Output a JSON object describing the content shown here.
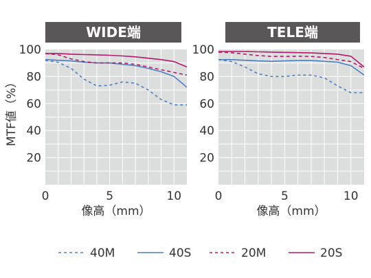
{
  "chart_data": {
    "type": "line",
    "ylabel": "MTF値（%）",
    "xlabel": "像高（mm）",
    "xlim": [
      0,
      11
    ],
    "ylim": [
      0,
      100
    ],
    "xticks": [
      "0",
      "5",
      "10"
    ],
    "yticks": [
      "20",
      "40",
      "60",
      "80",
      "100"
    ],
    "grid": true,
    "legend_position": "bottom",
    "colors": {
      "header_bg": "#595757",
      "plot_bg": "#dcdddd",
      "grid": "#ffffff",
      "blue": "#4a7ebf",
      "magenta": "#b5176b"
    },
    "legend": [
      {
        "name": "40M",
        "color": "#4a7ebf",
        "dash": "dashed"
      },
      {
        "name": "40S",
        "color": "#4a7ebf",
        "dash": "solid"
      },
      {
        "name": "20M",
        "color": "#b5176b",
        "dash": "dashed"
      },
      {
        "name": "20S",
        "color": "#b5176b",
        "dash": "solid"
      }
    ],
    "panels": [
      {
        "title": "WIDE端",
        "series": [
          {
            "name": "40M",
            "x": [
              0,
              1,
              2,
              3,
              4,
              5,
              6,
              7,
              8,
              9,
              10,
              11
            ],
            "y": [
              92,
              90.5,
              86,
              78,
              73,
              73.5,
              76,
              75,
              70,
              63,
              59,
              59
            ]
          },
          {
            "name": "40S",
            "x": [
              0,
              1,
              2,
              3,
              4,
              5,
              6,
              7,
              8,
              9,
              10,
              11
            ],
            "y": [
              92.5,
              92,
              91.5,
              90.5,
              90,
              90,
              89,
              88,
              86,
              83.5,
              80,
              72
            ]
          },
          {
            "name": "20M",
            "x": [
              0,
              1,
              2,
              3,
              4,
              5,
              6,
              7,
              8,
              9,
              10,
              11
            ],
            "y": [
              97,
              96,
              93,
              91,
              90,
              90,
              90,
              89,
              87,
              85,
              83,
              81
            ]
          },
          {
            "name": "20S",
            "x": [
              0,
              1,
              2,
              3,
              4,
              5,
              6,
              7,
              8,
              9,
              10,
              11
            ],
            "y": [
              97,
              97,
              96.5,
              96.2,
              96,
              95.7,
              95.2,
              94.5,
              93.5,
              92.5,
              91,
              87
            ]
          }
        ]
      },
      {
        "title": "TELE端",
        "series": [
          {
            "name": "40M",
            "x": [
              0,
              1,
              2,
              3,
              4,
              5,
              6,
              7,
              8,
              9,
              10,
              11
            ],
            "y": [
              92.5,
              91,
              87,
              82,
              80,
              80,
              81,
              81,
              79,
              73,
              68,
              68
            ]
          },
          {
            "name": "40S",
            "x": [
              0,
              1,
              2,
              3,
              4,
              5,
              6,
              7,
              8,
              9,
              10,
              11
            ],
            "y": [
              92.5,
              92.5,
              92,
              91.5,
              91.2,
              91.5,
              91.8,
              91.8,
              91.2,
              90.5,
              88,
              81
            ]
          },
          {
            "name": "20M",
            "x": [
              0,
              1,
              2,
              3,
              4,
              5,
              6,
              7,
              8,
              9,
              10,
              11
            ],
            "y": [
              98,
              97.5,
              96.5,
              95.5,
              94.8,
              94.8,
              95,
              94.8,
              94,
              92.5,
              91,
              86
            ]
          },
          {
            "name": "20S",
            "x": [
              0,
              1,
              2,
              3,
              4,
              5,
              6,
              7,
              8,
              9,
              10,
              11
            ],
            "y": [
              98.5,
              98.5,
              98.5,
              98.2,
              98,
              97.8,
              97.6,
              97.4,
              97,
              96.5,
              95,
              87
            ]
          }
        ]
      }
    ]
  }
}
